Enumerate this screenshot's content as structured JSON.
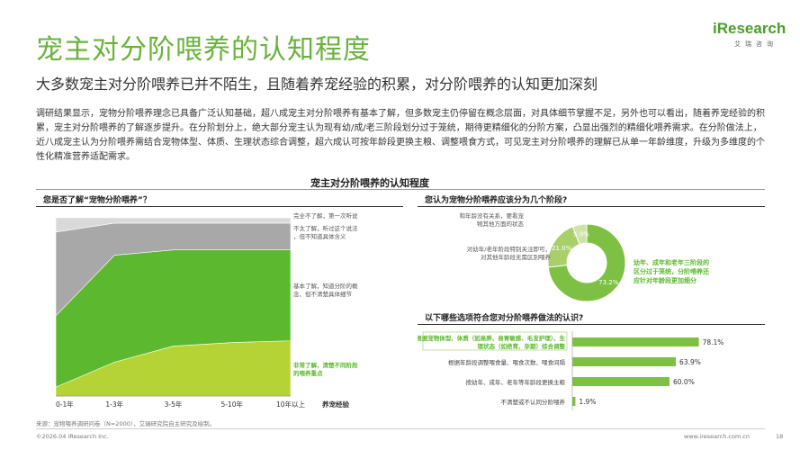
{
  "header": {
    "title": "宠主对分阶喂养的认知程度",
    "subtitle": "大多数宠主对分阶喂养已并不陌生，且随着养宠经验的积累，对分阶喂养的认知更加深刻",
    "logo_text": "iResearch",
    "logo_sub": "艾瑞咨询"
  },
  "body_text": "调研结果显示，宠物分阶喂养理念已具备广泛认知基础，超八成宠主对分阶喂养有基本了解，但多数宠主仍停留在概念层面，对具体细节掌握不足，另外也可以看出，随着养宠经验的积累，宠主对分阶喂养的了解逐步提升。在分阶划分上，绝大部分宠主认为现有幼/成/老三阶段划分过于笼统，期待更精细化的分阶方案，凸显出强烈的精细化喂养需求。在分阶做法上，近八成宠主认为分阶喂养需结合宠物体型、体质、生理状态综合调整，超六成认可按年龄段更换主粮、调整喂食方式，可见宠主对分阶喂养的理解已从单一年龄维度，升级为多维度的个性化精准营养适配需求。",
  "section_title": "宠主对分阶喂养的认知程度",
  "left_panel": {
    "title": "您是否了解“宠物分阶喂养”？"
  },
  "top_right_panel": {
    "title": "您认为宠物分阶喂养应该分为几个阶段?"
  },
  "bottom_right_panel": {
    "title": "以下哪些选项符合您对分阶喂养做法的认识?"
  },
  "footer": {
    "source": "来源：宠物喂养调研问卷（N=2000），艾瑞研究院自主研究及绘制。",
    "copyright": "©2026.04 iResearch Inc.",
    "website": "www.iresearch.com.cn",
    "page_number": "18"
  },
  "chart_data": [
    {
      "type": "area",
      "stacked": true,
      "title": "您是否了解“宠物分阶喂养”？",
      "xlabel": "养宠经验",
      "categories": [
        "0-1年",
        "1-3年",
        "3-5年",
        "5-10年",
        "10年以上"
      ],
      "ylim": [
        0,
        100
      ],
      "series": [
        {
          "name": "非常了解，清楚不同阶段的喂养重点",
          "values": [
            5,
            19,
            28,
            30,
            31
          ],
          "color": "#b5d334"
        },
        {
          "name": "基本了解，知道分阶的概念、但不清楚具体细节",
          "values": [
            40,
            60,
            54,
            52,
            51
          ],
          "color": "#5cb82e"
        },
        {
          "name": "不太了解，听过这个说法，但不知道具体含义",
          "values": [
            47,
            18,
            15,
            15,
            15
          ],
          "color": "#a8a8a8"
        },
        {
          "name": "完全不了解，第一次听说",
          "values": [
            8,
            3,
            3,
            3,
            3
          ],
          "color": "#d9d9d9"
        }
      ]
    },
    {
      "type": "pie",
      "donut": true,
      "title": "您认为宠物分阶喂养应该分为几个阶段?",
      "slices": [
        {
          "label": "幼年、成年和老年三阶段的区分过于笼统，分阶喂养还应针对年龄段更加细分",
          "value": 73.2,
          "display": "73.2%",
          "color": "#7ec043"
        },
        {
          "label": "对幼年/老年阶段特别关注即可，对其他年龄段无需区别喂养",
          "value": 21.0,
          "display": "21.0%",
          "color": "#a8cf6a"
        },
        {
          "label": "和年龄没有关系，要看宠物其他方面的状态",
          "value": 5.9,
          "display": "5.9%",
          "color": "#cfe3a8"
        }
      ]
    },
    {
      "type": "bar",
      "orientation": "horizontal",
      "title": "以下哪些选项符合您对分阶喂养做法的认识?",
      "categories": [
        "根据宠物体型、体质（如易胖、易胃敏感、毛发护理）、生理状态（如绝育、孕期）综合调整",
        "根据年龄段调整喂食量、喂食次数、喂食间隔",
        "按幼年、成年、老年等年龄段更换主粮",
        "不清楚或不认同分阶喂养"
      ],
      "values": [
        78.1,
        63.9,
        60.0,
        1.9
      ],
      "labels": [
        "78.1%",
        "63.9%",
        "60.0%",
        "1.9%"
      ],
      "xlim": [
        0,
        100
      ],
      "color": "#7ec043"
    }
  ]
}
